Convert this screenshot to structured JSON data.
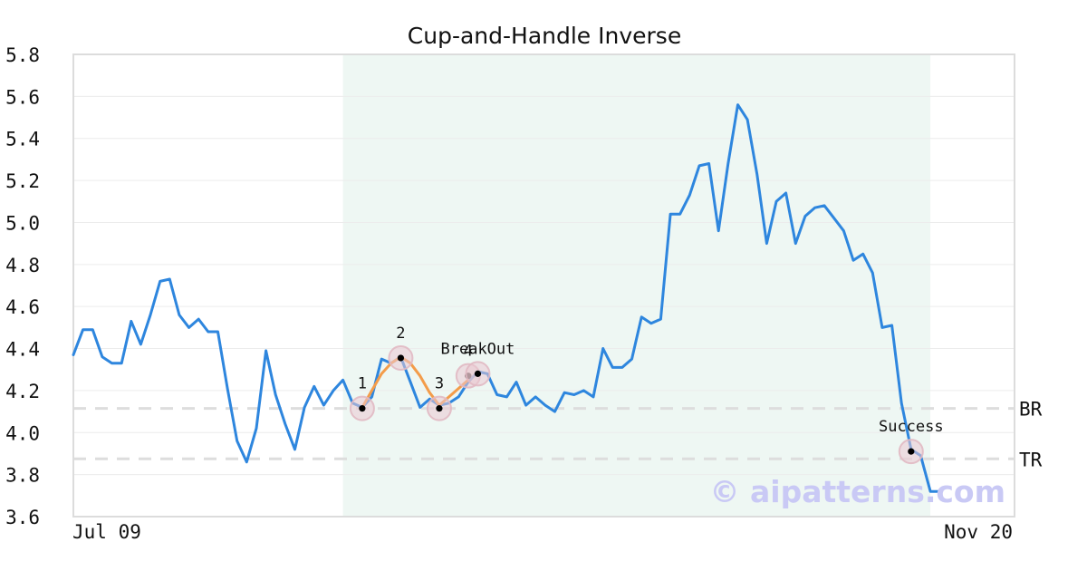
{
  "chart_data": {
    "type": "line",
    "title": "Cup-and-Handle Inverse",
    "xlabel": "",
    "ylabel": "",
    "ylim": [
      3.6,
      5.8
    ],
    "y_ticks": [
      "3.6",
      "3.8",
      "4.0",
      "4.2",
      "4.4",
      "4.6",
      "4.8",
      "5.0",
      "5.2",
      "5.4",
      "5.6",
      "5.8"
    ],
    "x_tick_labels": [
      "Jul 09",
      "Nov 20"
    ],
    "grid": true,
    "series": [
      {
        "color": "#2e86de",
        "values": [
          4.37,
          4.49,
          4.49,
          4.36,
          4.33,
          4.33,
          4.53,
          4.42,
          4.56,
          4.72,
          4.73,
          4.56,
          4.5,
          4.54,
          4.48,
          4.48,
          4.21,
          3.96,
          3.86,
          4.02,
          4.39,
          4.18,
          4.04,
          3.92,
          4.12,
          4.22,
          4.13,
          4.2,
          4.25,
          4.14,
          4.12,
          4.17,
          4.35,
          4.33,
          4.36,
          4.24,
          4.12,
          4.16,
          4.13,
          4.14,
          4.17,
          4.24,
          4.29,
          4.28,
          4.18,
          4.17,
          4.24,
          4.13,
          4.17,
          4.13,
          4.1,
          4.19,
          4.18,
          4.2,
          4.17,
          4.4,
          4.31,
          4.31,
          4.35,
          4.55,
          4.52,
          4.54,
          5.04,
          5.04,
          5.13,
          5.27,
          5.28,
          4.96,
          5.28,
          5.56,
          5.49,
          5.23,
          4.9,
          5.1,
          5.14,
          4.9,
          5.03,
          5.07,
          5.08,
          5.02,
          4.96,
          4.82,
          4.85,
          4.76,
          4.5,
          4.51,
          4.14,
          3.92,
          3.89,
          3.72,
          3.72
        ]
      },
      {
        "color": "#f39c4a",
        "index_range": [
          30,
          41
        ],
        "values": [
          4.12,
          4.2,
          4.28,
          4.33,
          4.36,
          4.33,
          4.27,
          4.19,
          4.13,
          4.17,
          4.21,
          4.25
        ]
      }
    ],
    "shaded_region": {
      "index_range": [
        28,
        89
      ],
      "color": "#eef7f3"
    },
    "levels": [
      {
        "label": "BR",
        "value": 4.115
      },
      {
        "label": "TR",
        "value": 3.875
      }
    ],
    "points": [
      {
        "label": "1",
        "index": 30,
        "value": 4.115
      },
      {
        "label": "2",
        "index": 34,
        "value": 4.355
      },
      {
        "label": "3",
        "index": 38,
        "value": 4.115
      },
      {
        "label": "4",
        "index": 41,
        "value": 4.27
      },
      {
        "label": "BreakOut",
        "index": 42,
        "value": 4.28
      },
      {
        "label": "Success",
        "index": 87,
        "value": 3.91
      }
    ]
  },
  "watermark": "© aipatterns.com"
}
